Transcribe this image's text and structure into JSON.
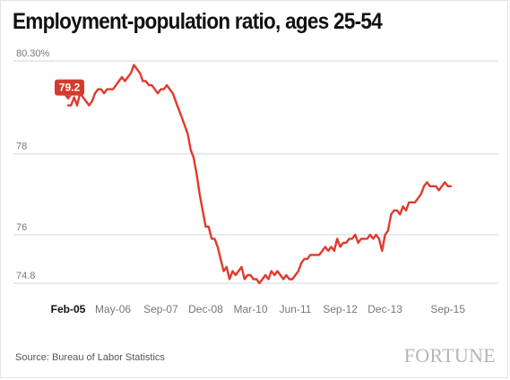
{
  "colors": {
    "line": "#e03a2e",
    "grid": "#d6d6d6",
    "tick_text": "#777777",
    "callout": "#d33b2e"
  },
  "source": "Source: Bureau of Labor Statistics",
  "logo": "FORTUNE",
  "chart_data": {
    "type": "line",
    "title": "Employment-population ratio, ages 25-54",
    "xlabel": "",
    "ylabel": "",
    "ylim": [
      74.6,
      80.3
    ],
    "xlim": [
      0,
      128
    ],
    "grid": true,
    "y_ticks": [
      {
        "value": 80.3,
        "label": "80.30%"
      },
      {
        "value": 78,
        "label": "78"
      },
      {
        "value": 76,
        "label": "76"
      },
      {
        "value": 74.8,
        "label": "74.8"
      }
    ],
    "x_ticks": [
      {
        "index": 0,
        "label": "Feb-05",
        "bold": true
      },
      {
        "index": 15,
        "label": "May-06",
        "bold": false
      },
      {
        "index": 31,
        "label": "Sep-07",
        "bold": false
      },
      {
        "index": 46,
        "label": "Dec-08",
        "bold": false
      },
      {
        "index": 61,
        "label": "Mar-10",
        "bold": false
      },
      {
        "index": 76,
        "label": "Jun-11",
        "bold": false
      },
      {
        "index": 91,
        "label": "Sep-12",
        "bold": false
      },
      {
        "index": 106,
        "label": "Dec-13",
        "bold": false
      },
      {
        "index": 127,
        "label": "Sep-15",
        "bold": false
      }
    ],
    "callout": {
      "index": 0,
      "label": "79.2"
    },
    "series": [
      {
        "values": [
          79.2,
          79.2,
          79.4,
          79.2,
          79.5,
          79.4,
          79.3,
          79.2,
          79.3,
          79.5,
          79.6,
          79.6,
          79.5,
          79.6,
          79.6,
          79.6,
          79.7,
          79.8,
          79.9,
          79.8,
          79.9,
          80.0,
          80.2,
          80.1,
          80.0,
          79.8,
          79.8,
          79.7,
          79.7,
          79.6,
          79.5,
          79.6,
          79.6,
          79.7,
          79.6,
          79.5,
          79.3,
          79.1,
          78.9,
          78.7,
          78.5,
          78.1,
          77.9,
          77.5,
          77.0,
          76.6,
          76.2,
          76.2,
          75.9,
          75.9,
          75.7,
          75.4,
          75.1,
          75.2,
          74.9,
          75.1,
          75.0,
          75.1,
          75.2,
          74.9,
          75.0,
          75.0,
          74.9,
          74.9,
          74.8,
          74.9,
          75.0,
          74.9,
          75.1,
          75.0,
          75.1,
          75.0,
          74.9,
          75.0,
          74.9,
          74.9,
          75.0,
          75.1,
          75.3,
          75.4,
          75.4,
          75.5,
          75.5,
          75.5,
          75.5,
          75.6,
          75.7,
          75.6,
          75.7,
          75.6,
          75.9,
          75.7,
          75.8,
          75.8,
          75.9,
          75.9,
          76.0,
          75.8,
          75.9,
          75.9,
          75.9,
          76.0,
          75.9,
          76.0,
          75.9,
          75.6,
          76.0,
          76.1,
          76.5,
          76.6,
          76.6,
          76.5,
          76.7,
          76.6,
          76.8,
          76.8,
          76.8,
          76.9,
          77.0,
          77.2,
          77.3,
          77.2,
          77.2,
          77.2,
          77.1,
          77.2,
          77.3,
          77.2,
          77.2
        ]
      }
    ]
  }
}
